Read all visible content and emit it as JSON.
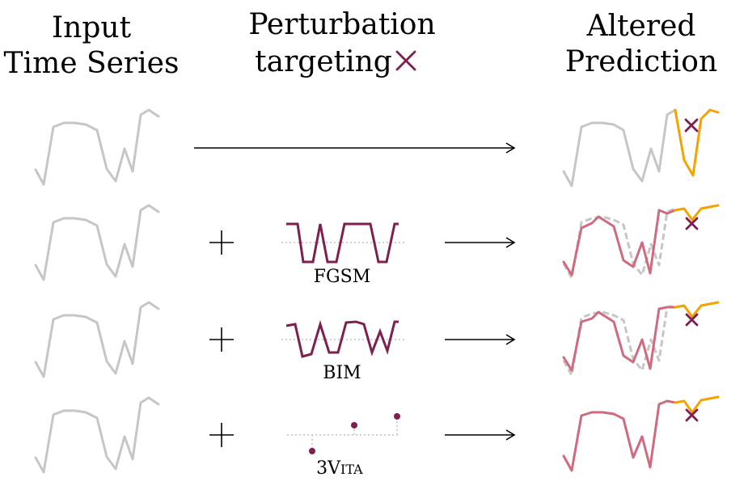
{
  "headers": {
    "input_line1": "Input",
    "input_line2": "Time Series",
    "perturb_line1": "Perturbation",
    "perturb_line2": "targeting",
    "altered_line1": "Altered",
    "altered_line2": "Prediction"
  },
  "methods": [
    {
      "name": "FGSM"
    },
    {
      "name": "BIM"
    },
    {
      "name_big": "3V",
      "name_small": "ITA"
    }
  ],
  "symbols": {
    "plus": "+",
    "target_mark": "cross-icon"
  },
  "colors": {
    "input_series": "#c6c6c6",
    "altered_input": "#d06a7e",
    "prediction": "#f4a300",
    "perturbation": "#7d1f4f",
    "target": "#7d1f4f"
  }
}
